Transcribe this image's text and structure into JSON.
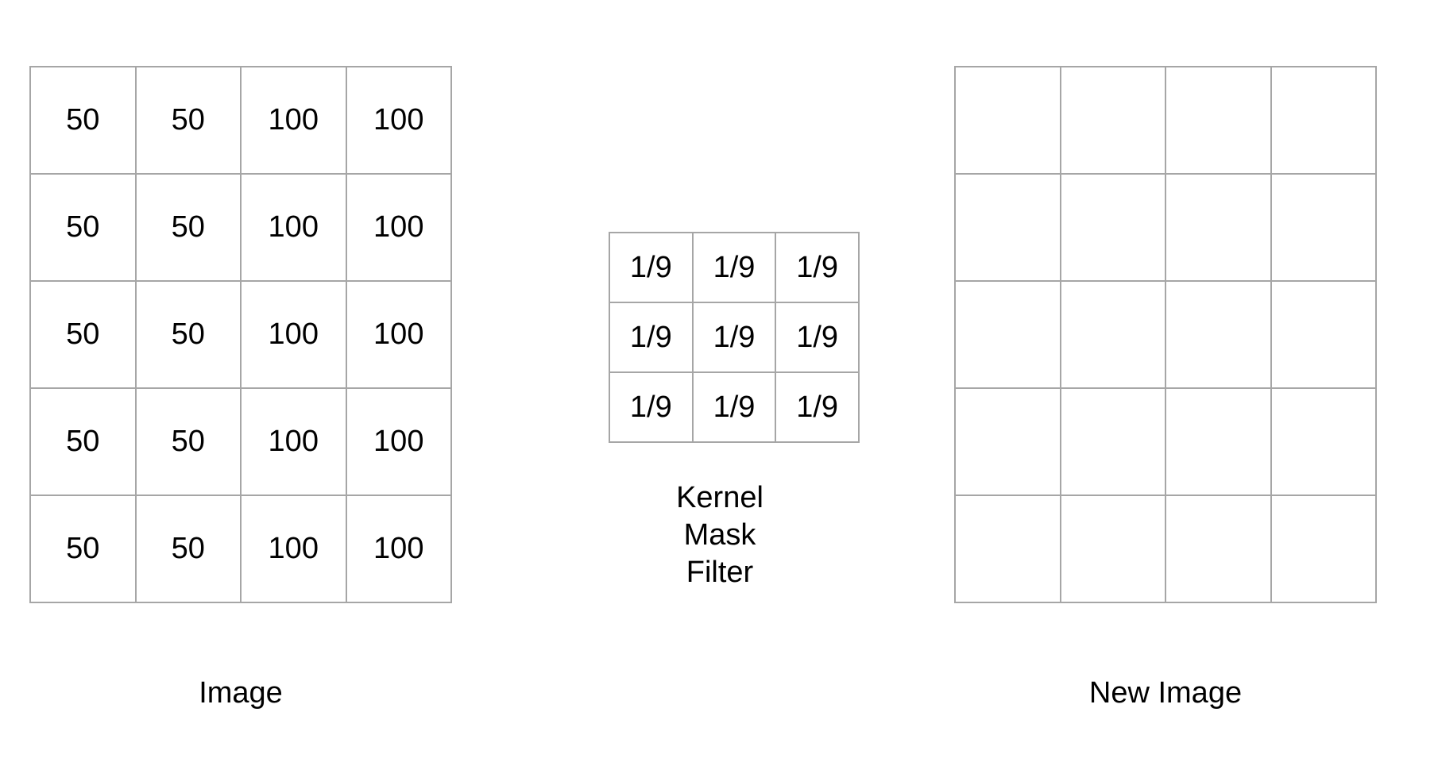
{
  "image": {
    "label": "Image",
    "rows": [
      [
        "50",
        "50",
        "100",
        "100"
      ],
      [
        "50",
        "50",
        "100",
        "100"
      ],
      [
        "50",
        "50",
        "100",
        "100"
      ],
      [
        "50",
        "50",
        "100",
        "100"
      ],
      [
        "50",
        "50",
        "100",
        "100"
      ]
    ]
  },
  "kernel": {
    "label_lines": [
      "Kernel",
      "Mask",
      "Filter"
    ],
    "rows": [
      [
        "1/9",
        "1/9",
        "1/9"
      ],
      [
        "1/9",
        "1/9",
        "1/9"
      ],
      [
        "1/9",
        "1/9",
        "1/9"
      ]
    ]
  },
  "new_image": {
    "label": "New Image",
    "rows": [
      [
        "",
        "",
        "",
        ""
      ],
      [
        "",
        "",
        "",
        ""
      ],
      [
        "",
        "",
        "",
        ""
      ],
      [
        "",
        "",
        "",
        ""
      ],
      [
        "",
        "",
        "",
        ""
      ]
    ]
  },
  "colors": {
    "grid_line": "#a6a6a6",
    "text": "#000000",
    "background": "#ffffff"
  }
}
